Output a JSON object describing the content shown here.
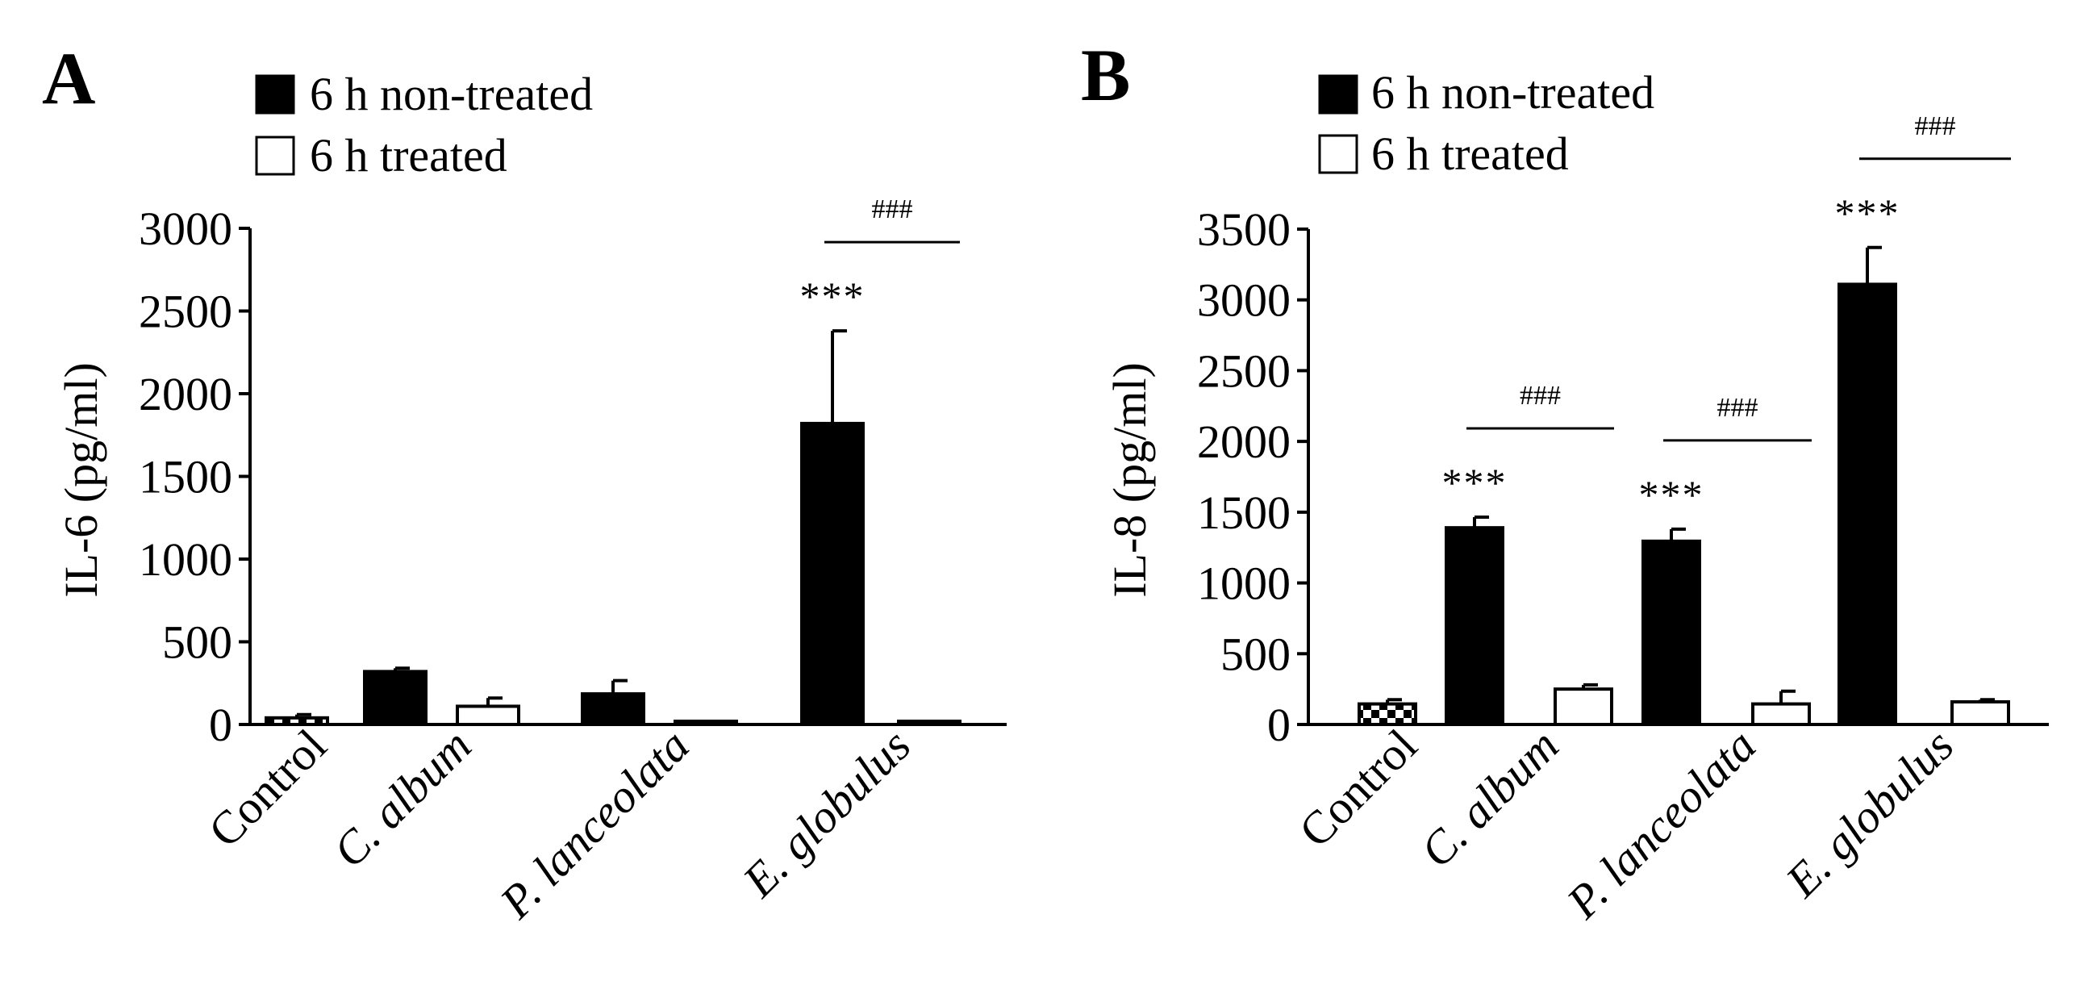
{
  "legend": {
    "non_treated": "6 h non-treated",
    "treated": "6 h treated"
  },
  "colors": {
    "non_treated_fill": "#000000",
    "treated_fill": "#ffffff",
    "stroke": "#000000"
  },
  "chart_data": [
    {
      "panel": "A",
      "type": "bar",
      "ylabel": "IL-6 (pg/ml)",
      "ylim": [
        0,
        3000
      ],
      "yticks": [
        0,
        500,
        1000,
        1500,
        2000,
        2500,
        3000
      ],
      "categories": [
        {
          "label": "Control",
          "italic": false
        },
        {
          "label": "C. album",
          "italic": true
        },
        {
          "label": "P. lanceolata",
          "italic": true
        },
        {
          "label": "E. globulus",
          "italic": true
        }
      ],
      "series": [
        {
          "name": "6 h non-treated",
          "values": [
            null,
            320,
            185,
            1820
          ],
          "errors": [
            null,
            20,
            80,
            560
          ],
          "patterns": [
            null,
            "solid",
            "solid",
            "solid"
          ]
        },
        {
          "name": "6 h treated",
          "values": [
            40,
            110,
            10,
            8
          ],
          "errors": [
            20,
            50,
            5,
            4
          ],
          "patterns": [
            "checker",
            "open",
            "open",
            "open"
          ]
        }
      ],
      "annotations": [
        {
          "category": 3,
          "stars": "***",
          "hash": "###"
        }
      ]
    },
    {
      "panel": "B",
      "type": "bar",
      "ylabel": "IL-8 (pg/ml)",
      "ylim": [
        0,
        3500
      ],
      "yticks": [
        0,
        500,
        1000,
        1500,
        2000,
        2500,
        3000,
        3500
      ],
      "categories": [
        {
          "label": "Control",
          "italic": false
        },
        {
          "label": "C. album",
          "italic": true
        },
        {
          "label": "P. lanceolata",
          "italic": true
        },
        {
          "label": "E. globulus",
          "italic": true
        }
      ],
      "series": [
        {
          "name": "6 h non-treated",
          "values": [
            null,
            1390,
            1295,
            3110
          ],
          "errors": [
            null,
            75,
            85,
            260
          ],
          "patterns": [
            null,
            "solid",
            "solid",
            "solid"
          ]
        },
        {
          "name": "6 h treated",
          "values": [
            145,
            250,
            145,
            160
          ],
          "errors": [
            30,
            30,
            90,
            15
          ],
          "patterns": [
            "checker",
            "open",
            "open",
            "open"
          ]
        }
      ],
      "annotations": [
        {
          "category": 1,
          "stars": "***",
          "hash": "###"
        },
        {
          "category": 2,
          "stars": "***",
          "hash": "###"
        },
        {
          "category": 3,
          "stars": "***",
          "hash": "###"
        }
      ]
    }
  ]
}
